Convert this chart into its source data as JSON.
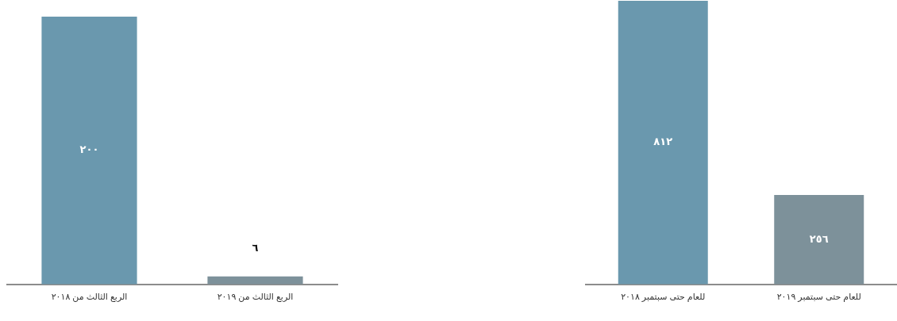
{
  "chart_data": [
    {
      "type": "bar",
      "categories": [
        "الربع الثالث من ٢٠١٨",
        "الربع الثالث من ٢٠١٩"
      ],
      "values": [
        200,
        6
      ],
      "value_labels": [
        "٢٠٠",
        "٦"
      ],
      "colors": [
        "#6a98ae",
        "#7d919a"
      ]
    },
    {
      "type": "bar",
      "categories": [
        "للعام حتى سبتمبر ٢٠١٨",
        "للعام حتى سبتمبر ٢٠١٩"
      ],
      "values": [
        812,
        256
      ],
      "value_labels": [
        "٨١٢",
        "٢٥٦"
      ],
      "colors": [
        "#6a98ae",
        "#7d919a"
      ]
    }
  ]
}
